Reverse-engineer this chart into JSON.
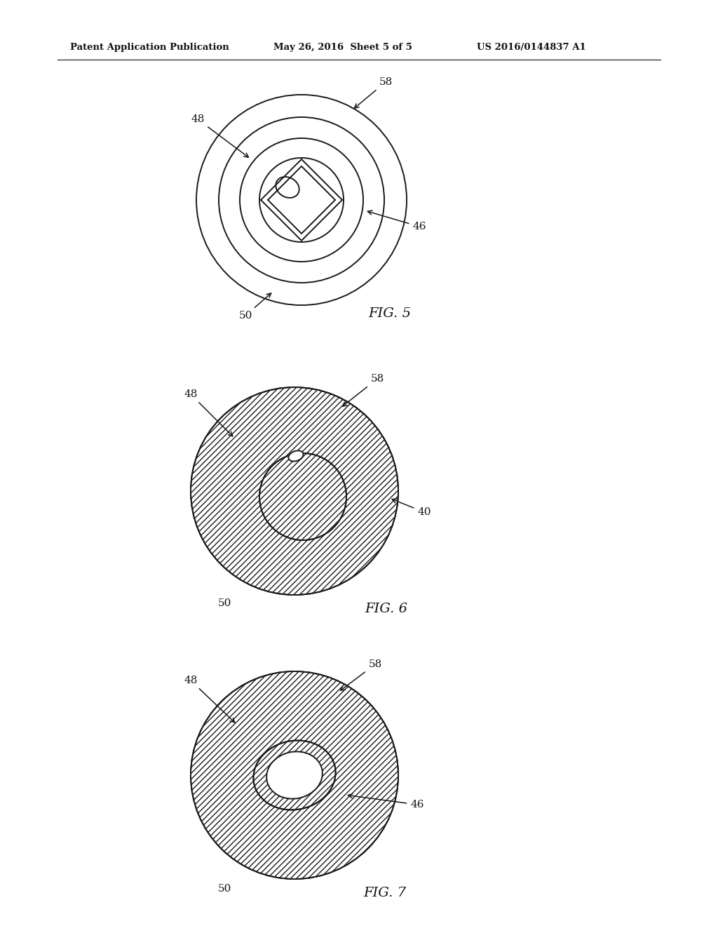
{
  "bg_color": "#ffffff",
  "line_color": "#1a1a1a",
  "header_left": "Patent Application Publication",
  "header_center": "May 26, 2016  Sheet 5 of 5",
  "header_right": "US 2016/0144837 A1",
  "fig5_label": "FIG. 5",
  "fig6_label": "FIG. 6",
  "fig7_label": "FIG. 7"
}
